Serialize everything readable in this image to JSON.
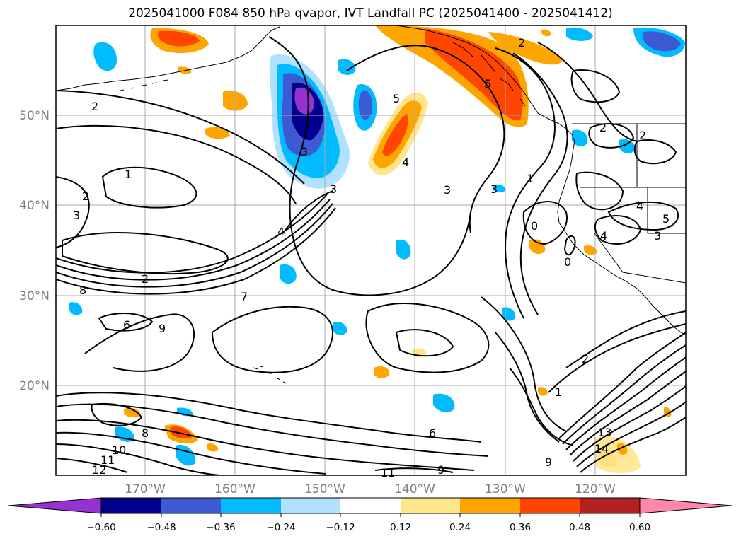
{
  "title": "2025041000 F084 850 hPa qvapor, IVT Landfall PC (2025041400 - 2025041412)",
  "map": {
    "lat_labels": [
      "50°N",
      "40°N",
      "30°N",
      "20°N"
    ],
    "lon_labels": [
      "170°W",
      "160°W",
      "150°W",
      "140°W",
      "130°W",
      "120°W"
    ],
    "lat_values": [
      50,
      40,
      30,
      20
    ],
    "lon_values": [
      -170,
      -160,
      -150,
      -140,
      -130,
      -120
    ],
    "lat_range": [
      10,
      60
    ],
    "lon_range": [
      -180,
      -110
    ],
    "gridlines": true,
    "coastline_color": "#000000"
  },
  "contours": {
    "line_color": "#000000",
    "labels": [
      "2",
      "1",
      "2",
      "3",
      "3",
      "3",
      "4",
      "2",
      "7",
      "6",
      "8",
      "9",
      "8",
      "10",
      "11",
      "12",
      "11",
      "9",
      "6",
      "3",
      "2",
      "1",
      "0",
      "0",
      "4",
      "3",
      "4",
      "5",
      "2",
      "2",
      "1",
      "13",
      "14",
      "9",
      "3",
      "5",
      "4",
      "5",
      "2"
    ]
  },
  "colorbar": {
    "ticks": [
      "−0.60",
      "−0.48",
      "−0.36",
      "−0.24",
      "−0.12",
      "0.12",
      "0.24",
      "0.36",
      "0.48",
      "0.60"
    ],
    "colors": [
      "#9632d2",
      "#00008c",
      "#3c5ad2",
      "#00bbff",
      "#b0e2ff",
      "#ffffff",
      "#ffe68c",
      "#ffa500",
      "#ff4500",
      "#b22222",
      "#ff88aa"
    ],
    "extend": "both"
  }
}
